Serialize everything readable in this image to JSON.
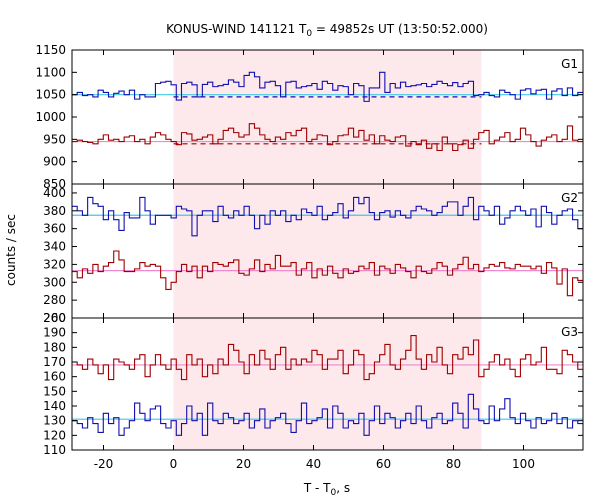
{
  "chart_data": {
    "type": "line",
    "title": {
      "prefix": "KONUS-WIND 141121 T",
      "sub": "0",
      "suffix": " = 49852s UT (13:50:52.000)"
    },
    "xlabel": {
      "prefix": "T - T",
      "sub": "0",
      "suffix": ", s"
    },
    "ylabel": "counts / sec",
    "xlim": [
      -29,
      117
    ],
    "xticks": [
      -20,
      0,
      20,
      40,
      60,
      80,
      100
    ],
    "shaded_interval": [
      0,
      88
    ],
    "colors": {
      "red_series": "#a00000",
      "blue_series": "#1010b0",
      "cyan_fit": "#40c8e8",
      "pink_fit": "#f088d0",
      "shade": "#fde8ec"
    },
    "panels": [
      {
        "label": "G1",
        "ylim": [
          850,
          1150
        ],
        "yticks": [
          850,
          900,
          950,
          1000,
          1050,
          1100,
          1150
        ],
        "series": [
          {
            "color": "blue",
            "fit": 1050,
            "dashed_level": 1045,
            "values": [
              1050,
              1055,
              1048,
              1050,
              1045,
              1060,
              1055,
              1045,
              1053,
              1058,
              1050,
              1060,
              1040,
              1050,
              1045,
              1045,
              1075,
              1078,
              1080,
              1072,
              1038,
              1075,
              1078,
              1072,
              1045,
              1073,
              1078,
              1068,
              1070,
              1073,
              1083,
              1078,
              1068,
              1093,
              1100,
              1090,
              1065,
              1078,
              1080,
              1070,
              1045,
              1078,
              1080,
              1065,
              1068,
              1070,
              1075,
              1062,
              1080,
              1075,
              1060,
              1070,
              1068,
              1050,
              1075,
              1070,
              1035,
              1065,
              1065,
              1100,
              1055,
              1075,
              1065,
              1078,
              1068,
              1070,
              1072,
              1075,
              1068,
              1073,
              1080,
              1075,
              1070,
              1077,
              1068,
              1075,
              1080,
              1048,
              1050,
              1055,
              1048,
              1045,
              1060,
              1055,
              1050,
              1040,
              1060,
              1063,
              1052,
              1060,
              1062,
              1040,
              1058,
              1063,
              1048,
              1065,
              1048,
              1055
            ]
          },
          {
            "color": "red",
            "fit": 945,
            "dashed_level": 940,
            "values": [
              945,
              948,
              945,
              943,
              940,
              950,
              960,
              948,
              950,
              945,
              955,
              958,
              945,
              950,
              940,
              955,
              965,
              960,
              950,
              945,
              938,
              965,
              962,
              948,
              950,
              955,
              960,
              940,
              950,
              970,
              975,
              965,
              955,
              960,
              985,
              975,
              960,
              950,
              945,
              955,
              950,
              965,
              958,
              970,
              975,
              945,
              950,
              960,
              958,
              938,
              945,
              958,
              960,
              975,
              955,
              970,
              948,
              960,
              940,
              958,
              948,
              945,
              955,
              958,
              935,
              945,
              938,
              948,
              930,
              940,
              925,
              955,
              940,
              925,
              938,
              948,
              930,
              950,
              965,
              970,
              940,
              948,
              955,
              965,
              945,
              950,
              975,
              960,
              945,
              935,
              948,
              955,
              960,
              945,
              950,
              980,
              948,
              945
            ]
          }
        ]
      },
      {
        "label": "G2",
        "ylim": [
          260,
          410
        ],
        "yticks": [
          260,
          280,
          300,
          320,
          340,
          360,
          380,
          400
        ],
        "series": [
          {
            "color": "blue",
            "fit": 375,
            "values": [
              385,
              380,
              375,
              395,
              388,
              385,
              370,
              380,
              370,
              358,
              378,
              372,
              372,
              395,
              380,
              365,
              375,
              375,
              375,
              372,
              385,
              382,
              380,
              352,
              375,
              380,
              380,
              368,
              385,
              375,
              372,
              380,
              375,
              385,
              375,
              360,
              375,
              365,
              380,
              375,
              380,
              368,
              375,
              370,
              382,
              378,
              375,
              385,
              370,
              375,
              378,
              388,
              372,
              380,
              395,
              388,
              395,
              378,
              370,
              378,
              380,
              373,
              380,
              375,
              372,
              380,
              385,
              382,
              380,
              375,
              378,
              385,
              390,
              390,
              375,
              385,
              395,
              370,
              385,
              380,
              375,
              385,
              365,
              372,
              380,
              385,
              380,
              375,
              382,
              362,
              385,
              378,
              365,
              375,
              380,
              382,
              370,
              360
            ]
          },
          {
            "color": "red",
            "fit": 313,
            "values": [
              312,
              305,
              315,
              310,
              320,
              312,
              318,
              322,
              335,
              325,
              312,
              312,
              315,
              322,
              318,
              320,
              318,
              305,
              292,
              300,
              312,
              320,
              312,
              318,
              305,
              318,
              312,
              322,
              320,
              318,
              322,
              325,
              310,
              308,
              315,
              325,
              312,
              320,
              315,
              330,
              318,
              318,
              322,
              308,
              315,
              322,
              305,
              315,
              308,
              318,
              310,
              305,
              315,
              310,
              312,
              318,
              315,
              322,
              308,
              318,
              315,
              310,
              320,
              316,
              312,
              305,
              318,
              312,
              310,
              315,
              322,
              318,
              308,
              315,
              320,
              328,
              315,
              320,
              312,
              316,
              320,
              318,
              322,
              316,
              315,
              320,
              318,
              318,
              315,
              318,
              310,
              322,
              316,
              298,
              315,
              285,
              305,
              302
            ]
          }
        ]
      },
      {
        "label": "G3",
        "ylim": [
          110,
          200
        ],
        "yticks": [
          110,
          120,
          130,
          140,
          150,
          160,
          170,
          180,
          190,
          200
        ],
        "series": [
          {
            "color": "red",
            "fit": 168,
            "values": [
              170,
              168,
              165,
              172,
              168,
              162,
              168,
              158,
              172,
              170,
              168,
              165,
              172,
              175,
              160,
              168,
              175,
              168,
              165,
              172,
              165,
              158,
              175,
              168,
              172,
              160,
              168,
              162,
              172,
              168,
              182,
              178,
              170,
              162,
              175,
              168,
              178,
              172,
              165,
              175,
              180,
              165,
              172,
              168,
              172,
              170,
              178,
              175,
              165,
              172,
              172,
              178,
              162,
              168,
              178,
              175,
              158,
              162,
              170,
              175,
              182,
              168,
              165,
              172,
              178,
              188,
              172,
              165,
              175,
              170,
              180,
              168,
              162,
              175,
              172,
              180,
              175,
              185,
              160,
              165,
              170,
              175,
              168,
              172,
              165,
              160,
              172,
              175,
              168,
              170,
              180,
              165,
              165,
              162,
              178,
              175,
              170,
              165
            ]
          },
          {
            "color": "blue",
            "fit": 131,
            "values": [
              130,
              128,
              125,
              132,
              128,
              122,
              135,
              128,
              132,
              120,
              125,
              130,
              142,
              135,
              130,
              138,
              140,
              128,
              125,
              130,
              120,
              128,
              140,
              130,
              135,
              120,
              142,
              130,
              128,
              135,
              132,
              128,
              130,
              135,
              125,
              130,
              138,
              125,
              130,
              132,
              135,
              128,
              122,
              130,
              142,
              128,
              130,
              132,
              138,
              125,
              140,
              135,
              125,
              130,
              128,
              135,
              120,
              130,
              140,
              128,
              135,
              132,
              125,
              130,
              135,
              128,
              140,
              130,
              125,
              132,
              135,
              128,
              130,
              142,
              135,
              125,
              148,
              138,
              130,
              128,
              140,
              130,
              138,
              145,
              132,
              128,
              135,
              130,
              125,
              132,
              128,
              130,
              135,
              128,
              132,
              125,
              130,
              128
            ]
          }
        ]
      }
    ]
  }
}
